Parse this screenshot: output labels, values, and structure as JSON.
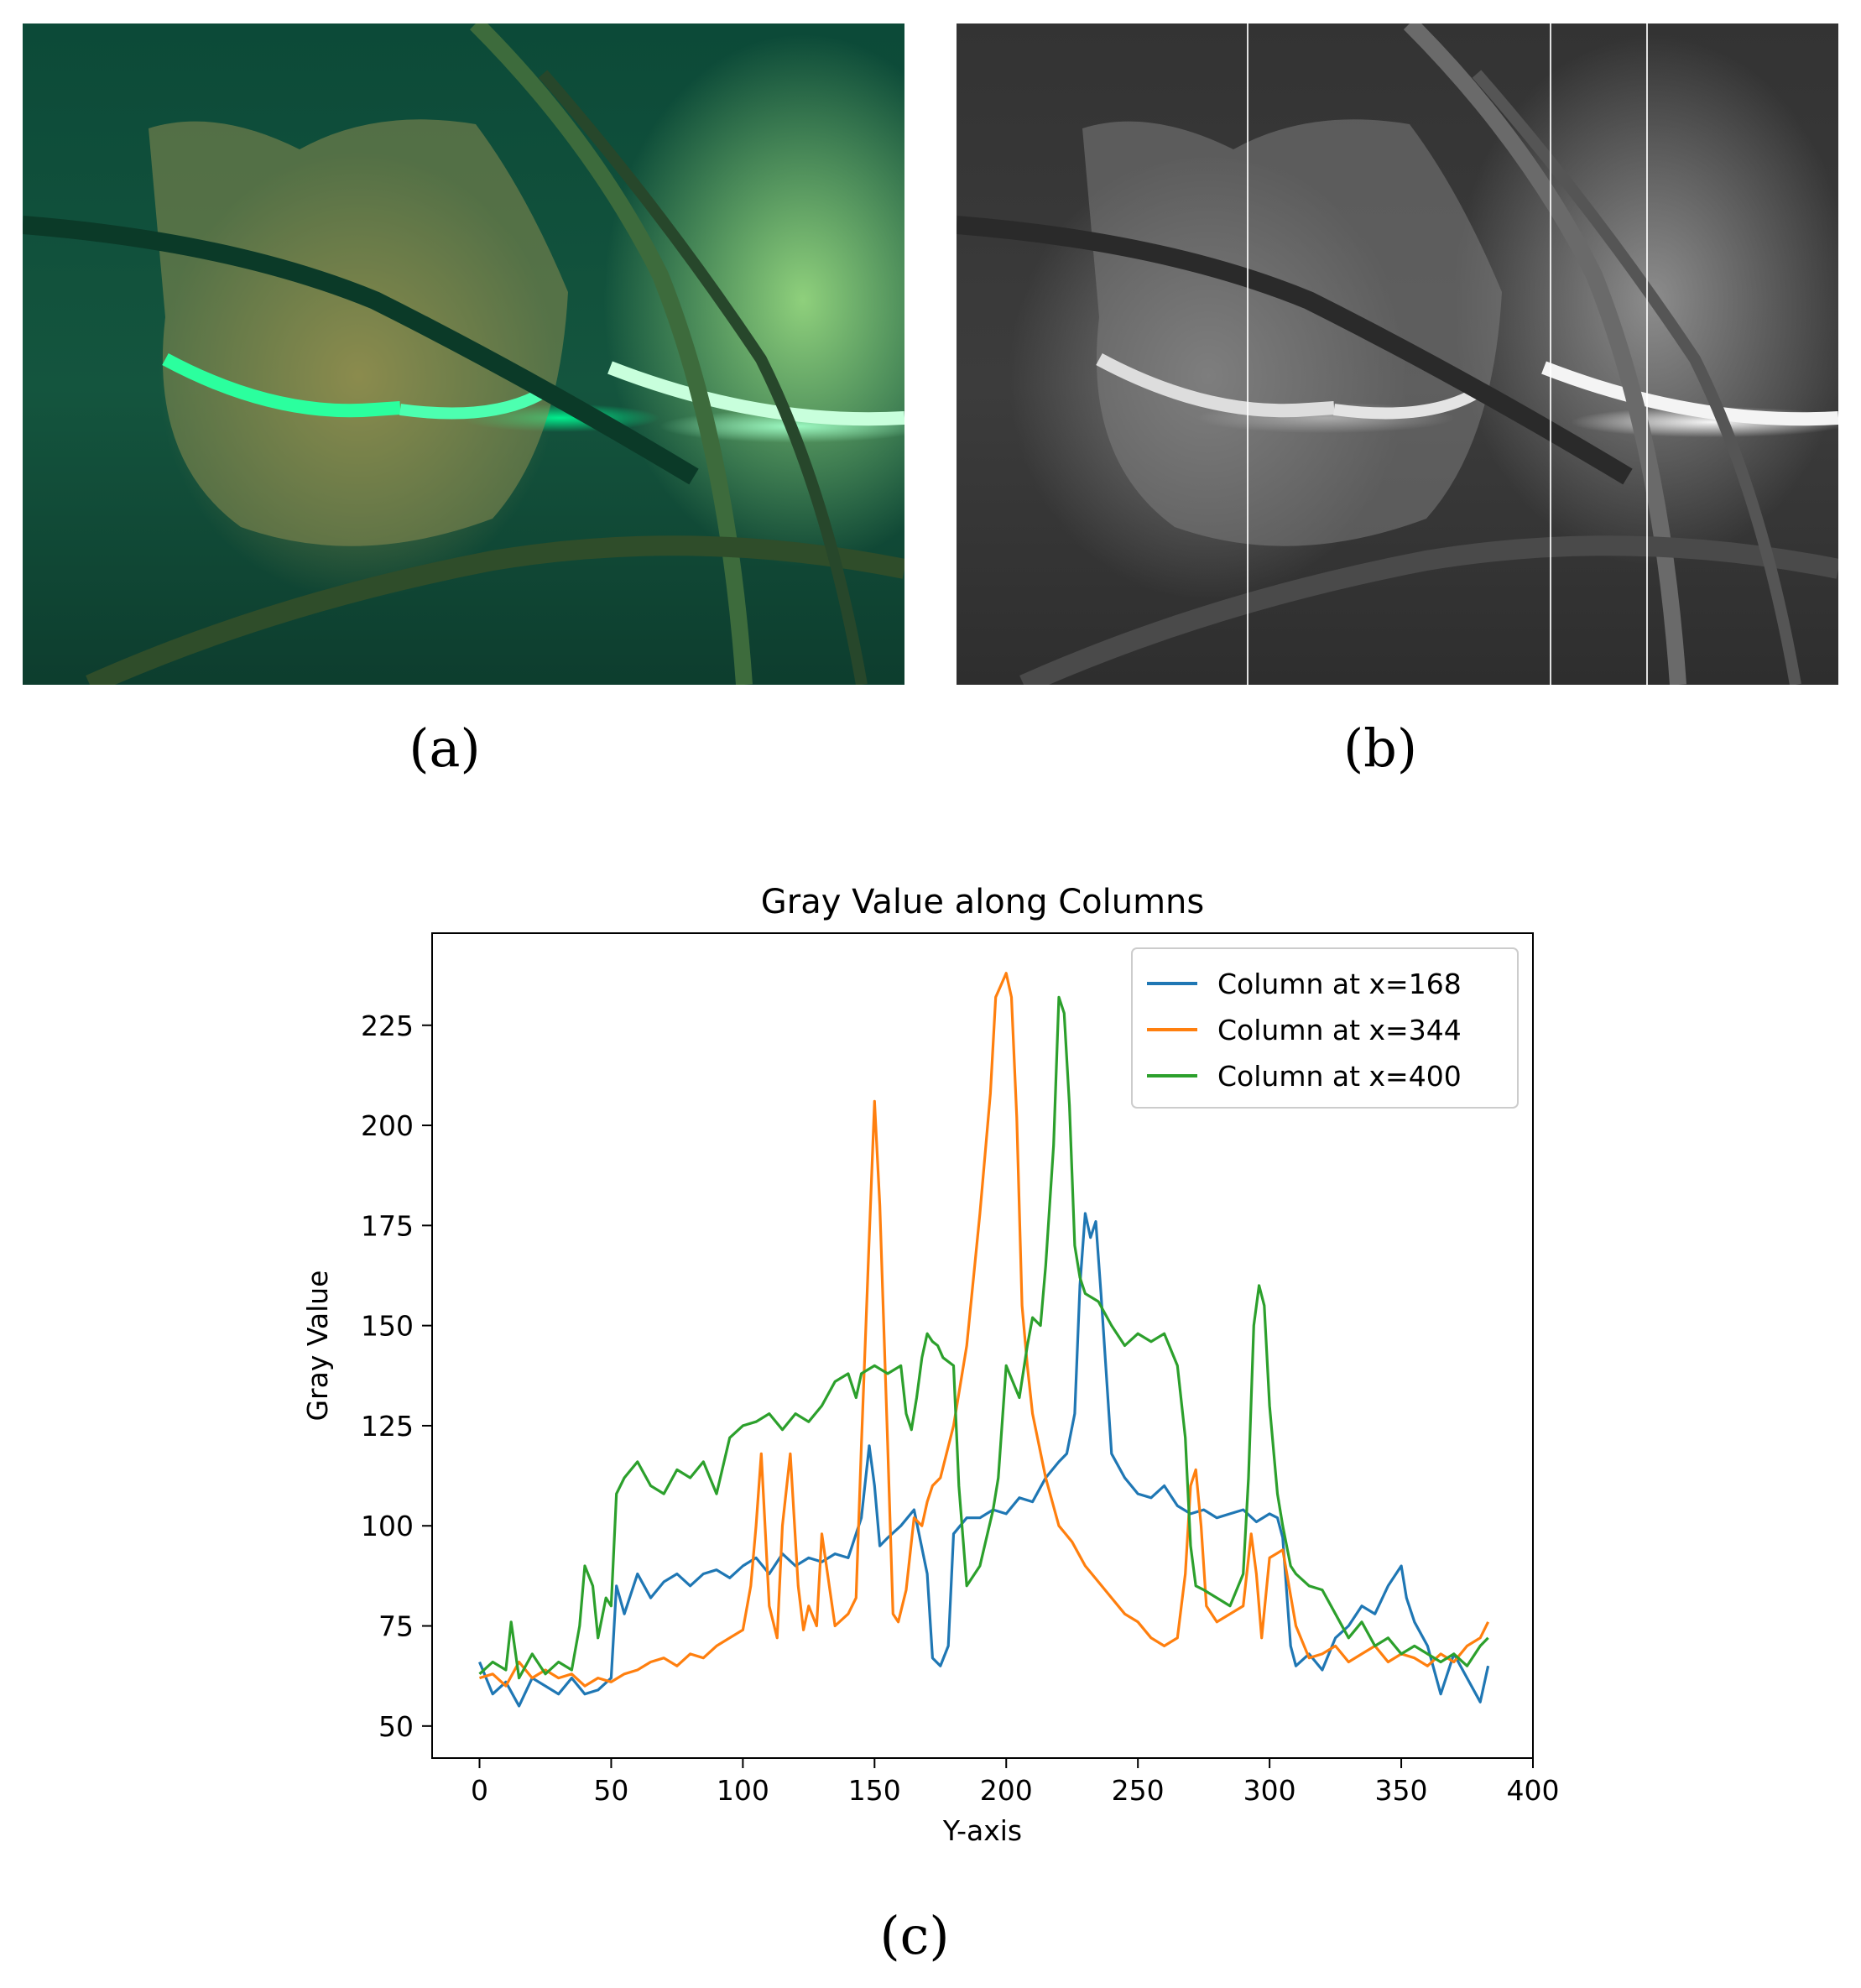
{
  "panels": {
    "a": {
      "label": "(a)"
    },
    "b": {
      "label": "(b)"
    },
    "c": {
      "label": "(c)"
    }
  },
  "chart_data": {
    "type": "line",
    "title": "Gray Value along Columns",
    "xlabel": "Y-axis",
    "ylabel": "Gray Value",
    "xlim": [
      -18,
      400
    ],
    "ylim": [
      42,
      248
    ],
    "xticks": [
      0,
      50,
      100,
      150,
      200,
      250,
      300,
      350,
      400
    ],
    "yticks": [
      50,
      75,
      100,
      125,
      150,
      175,
      200,
      225
    ],
    "legend_position": "top-right",
    "series": [
      {
        "name": "Column at x=168",
        "color": "#1f77b4",
        "x": [
          0,
          5,
          10,
          15,
          20,
          25,
          30,
          35,
          40,
          45,
          50,
          52,
          55,
          60,
          65,
          70,
          75,
          80,
          85,
          90,
          95,
          100,
          105,
          110,
          115,
          120,
          125,
          130,
          135,
          140,
          145,
          148,
          150,
          152,
          155,
          160,
          165,
          170,
          172,
          175,
          178,
          180,
          185,
          190,
          195,
          200,
          205,
          210,
          215,
          220,
          223,
          226,
          228,
          230,
          232,
          234,
          236,
          240,
          245,
          250,
          255,
          260,
          265,
          270,
          275,
          280,
          285,
          290,
          295,
          300,
          303,
          305,
          308,
          310,
          315,
          320,
          325,
          330,
          335,
          340,
          345,
          350,
          352,
          355,
          360,
          365,
          370,
          375,
          380,
          383
        ],
        "values": [
          66,
          58,
          61,
          55,
          62,
          60,
          58,
          62,
          58,
          59,
          62,
          85,
          78,
          88,
          82,
          86,
          88,
          85,
          88,
          89,
          87,
          90,
          92,
          88,
          93,
          90,
          92,
          91,
          93,
          92,
          102,
          120,
          110,
          95,
          97,
          100,
          104,
          88,
          67,
          65,
          70,
          98,
          102,
          102,
          104,
          103,
          107,
          106,
          112,
          116,
          118,
          128,
          160,
          178,
          172,
          176,
          158,
          118,
          112,
          108,
          107,
          110,
          105,
          103,
          104,
          102,
          103,
          104,
          101,
          103,
          102,
          97,
          70,
          65,
          68,
          64,
          72,
          75,
          80,
          78,
          85,
          90,
          82,
          76,
          70,
          58,
          68,
          62,
          56,
          65
        ]
      },
      {
        "name": "Column at x=344",
        "color": "#ff7f0e",
        "x": [
          0,
          5,
          10,
          15,
          20,
          25,
          30,
          35,
          40,
          45,
          50,
          55,
          60,
          65,
          70,
          75,
          80,
          85,
          90,
          95,
          100,
          103,
          105,
          107,
          110,
          113,
          115,
          118,
          121,
          123,
          125,
          128,
          130,
          135,
          140,
          143,
          145,
          148,
          150,
          152,
          155,
          157,
          159,
          162,
          165,
          168,
          170,
          172,
          175,
          180,
          185,
          190,
          194,
          196,
          198,
          200,
          202,
          204,
          206,
          208,
          210,
          215,
          220,
          225,
          230,
          235,
          240,
          245,
          250,
          255,
          260,
          265,
          268,
          270,
          272,
          274,
          276,
          280,
          285,
          290,
          293,
          295,
          297,
          300,
          305,
          310,
          315,
          320,
          325,
          330,
          335,
          340,
          345,
          350,
          355,
          360,
          365,
          370,
          375,
          380,
          383
        ],
        "values": [
          62,
          63,
          60,
          66,
          62,
          64,
          62,
          63,
          60,
          62,
          61,
          63,
          64,
          66,
          67,
          65,
          68,
          67,
          70,
          72,
          74,
          85,
          100,
          118,
          80,
          72,
          100,
          118,
          85,
          74,
          80,
          75,
          98,
          75,
          78,
          82,
          120,
          172,
          206,
          180,
          120,
          78,
          76,
          84,
          102,
          100,
          106,
          110,
          112,
          125,
          145,
          178,
          208,
          232,
          235,
          238,
          232,
          202,
          155,
          140,
          128,
          112,
          100,
          96,
          90,
          86,
          82,
          78,
          76,
          72,
          70,
          72,
          88,
          110,
          114,
          100,
          80,
          76,
          78,
          80,
          98,
          88,
          72,
          92,
          94,
          75,
          67,
          68,
          70,
          66,
          68,
          70,
          66,
          68,
          67,
          65,
          68,
          66,
          70,
          72,
          76
        ]
      },
      {
        "name": "Column at x=400",
        "color": "#2ca02c",
        "x": [
          0,
          5,
          10,
          12,
          15,
          20,
          25,
          30,
          35,
          38,
          40,
          43,
          45,
          48,
          50,
          52,
          55,
          60,
          65,
          70,
          75,
          80,
          85,
          90,
          95,
          100,
          105,
          110,
          115,
          120,
          125,
          130,
          135,
          140,
          143,
          145,
          150,
          155,
          160,
          162,
          164,
          166,
          168,
          170,
          172,
          174,
          176,
          180,
          182,
          185,
          190,
          195,
          197,
          200,
          205,
          208,
          210,
          213,
          215,
          218,
          220,
          222,
          224,
          226,
          228,
          230,
          235,
          240,
          245,
          250,
          255,
          260,
          265,
          268,
          270,
          272,
          275,
          280,
          285,
          290,
          292,
          294,
          296,
          298,
          300,
          303,
          305,
          308,
          310,
          315,
          320,
          325,
          330,
          335,
          340,
          345,
          350,
          355,
          360,
          365,
          370,
          375,
          380,
          383
        ],
        "values": [
          63,
          66,
          64,
          76,
          62,
          68,
          63,
          66,
          64,
          75,
          90,
          85,
          72,
          82,
          80,
          108,
          112,
          116,
          110,
          108,
          114,
          112,
          116,
          108,
          122,
          125,
          126,
          128,
          124,
          128,
          126,
          130,
          136,
          138,
          132,
          138,
          140,
          138,
          140,
          128,
          124,
          132,
          142,
          148,
          146,
          145,
          142,
          140,
          110,
          85,
          90,
          104,
          112,
          140,
          132,
          145,
          152,
          150,
          165,
          195,
          232,
          228,
          205,
          170,
          162,
          158,
          156,
          150,
          145,
          148,
          146,
          148,
          140,
          122,
          95,
          85,
          84,
          82,
          80,
          88,
          112,
          150,
          160,
          155,
          130,
          108,
          100,
          90,
          88,
          85,
          84,
          78,
          72,
          76,
          70,
          72,
          68,
          70,
          68,
          66,
          68,
          65,
          70,
          72
        ]
      }
    ]
  }
}
